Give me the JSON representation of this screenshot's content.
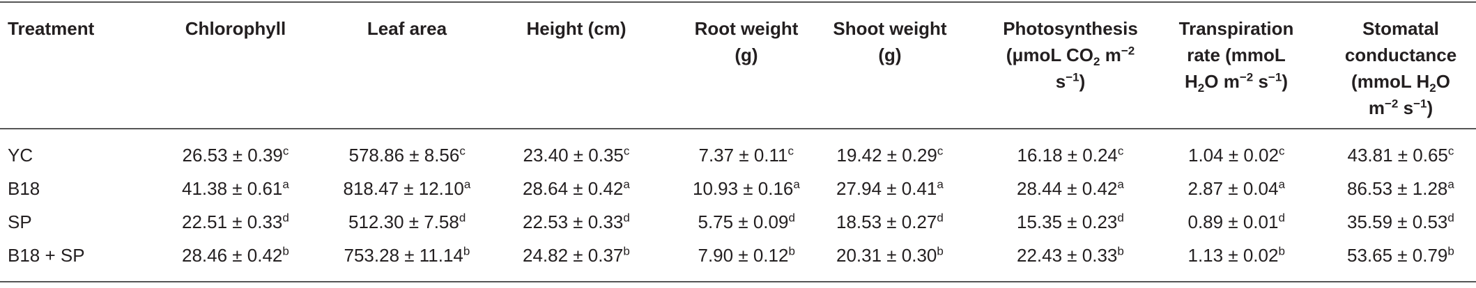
{
  "table": {
    "header": [
      [
        {
          "text": "Treatment"
        }
      ],
      [
        {
          "text": "Chlorophyll"
        }
      ],
      [
        {
          "text": "Leaf area"
        }
      ],
      [
        {
          "text": "Height (cm)"
        }
      ],
      [
        {
          "text": "Root weight (g)"
        }
      ],
      [
        {
          "text": "Shoot weight (g)"
        }
      ],
      [
        {
          "text": "Photosynthesis (μmoL CO"
        },
        {
          "text": "2",
          "pos": "sub"
        },
        {
          "text": " m"
        },
        {
          "text": "−2",
          "pos": "sup"
        },
        {
          "text": " s"
        },
        {
          "text": "−1",
          "pos": "sup"
        },
        {
          "text": ")"
        }
      ],
      [
        {
          "text": "Transpiration rate (mmoL H"
        },
        {
          "text": "2",
          "pos": "sub"
        },
        {
          "text": "O m"
        },
        {
          "text": "−2",
          "pos": "sup"
        },
        {
          "text": " s"
        },
        {
          "text": "−1",
          "pos": "sup"
        },
        {
          "text": ")"
        }
      ],
      [
        {
          "text": "Stomatal conductance (mmoL H"
        },
        {
          "text": "2",
          "pos": "sub"
        },
        {
          "text": "O m"
        },
        {
          "text": "−2",
          "pos": "sup"
        },
        {
          "text": " s"
        },
        {
          "text": "−1",
          "pos": "sup"
        },
        {
          "text": ")"
        }
      ]
    ],
    "rows": [
      {
        "treatment": "YC",
        "cells": [
          {
            "value": "26.53 ± 0.39",
            "sup": "c"
          },
          {
            "value": "578.86 ± 8.56",
            "sup": "c"
          },
          {
            "value": "23.40 ± 0.35",
            "sup": "c"
          },
          {
            "value": "7.37 ± 0.11",
            "sup": "c"
          },
          {
            "value": "19.42 ± 0.29",
            "sup": "c"
          },
          {
            "value": "16.18 ± 0.24",
            "sup": "c"
          },
          {
            "value": "1.04 ± 0.02",
            "sup": "c"
          },
          {
            "value": "43.81 ± 0.65",
            "sup": "c"
          }
        ]
      },
      {
        "treatment": "B18",
        "cells": [
          {
            "value": "41.38 ± 0.61",
            "sup": "a"
          },
          {
            "value": "818.47 ± 12.10",
            "sup": "a"
          },
          {
            "value": "28.64 ± 0.42",
            "sup": "a"
          },
          {
            "value": "10.93 ± 0.16",
            "sup": "a"
          },
          {
            "value": "27.94 ± 0.41",
            "sup": "a"
          },
          {
            "value": "28.44 ± 0.42",
            "sup": "a"
          },
          {
            "value": "2.87 ± 0.04",
            "sup": "a"
          },
          {
            "value": "86.53 ± 1.28",
            "sup": "a"
          }
        ]
      },
      {
        "treatment": "SP",
        "cells": [
          {
            "value": "22.51 ± 0.33",
            "sup": "d"
          },
          {
            "value": "512.30 ± 7.58",
            "sup": "d"
          },
          {
            "value": "22.53 ± 0.33",
            "sup": "d"
          },
          {
            "value": "5.75 ± 0.09",
            "sup": "d"
          },
          {
            "value": "18.53 ± 0.27",
            "sup": "d"
          },
          {
            "value": "15.35 ± 0.23",
            "sup": "d"
          },
          {
            "value": "0.89 ± 0.01",
            "sup": "d"
          },
          {
            "value": "35.59 ± 0.53",
            "sup": "d"
          }
        ]
      },
      {
        "treatment": "B18 + SP",
        "cells": [
          {
            "value": "28.46 ± 0.42",
            "sup": "b"
          },
          {
            "value": "753.28 ± 11.14",
            "sup": "b"
          },
          {
            "value": "24.82 ± 0.37",
            "sup": "b"
          },
          {
            "value": "7.90 ± 0.12",
            "sup": "b"
          },
          {
            "value": "20.31 ± 0.30",
            "sup": "b"
          },
          {
            "value": "22.43 ± 0.33",
            "sup": "b"
          },
          {
            "value": "1.13 ± 0.02",
            "sup": "b"
          },
          {
            "value": "53.65 ± 0.79",
            "sup": "b"
          }
        ]
      }
    ]
  }
}
